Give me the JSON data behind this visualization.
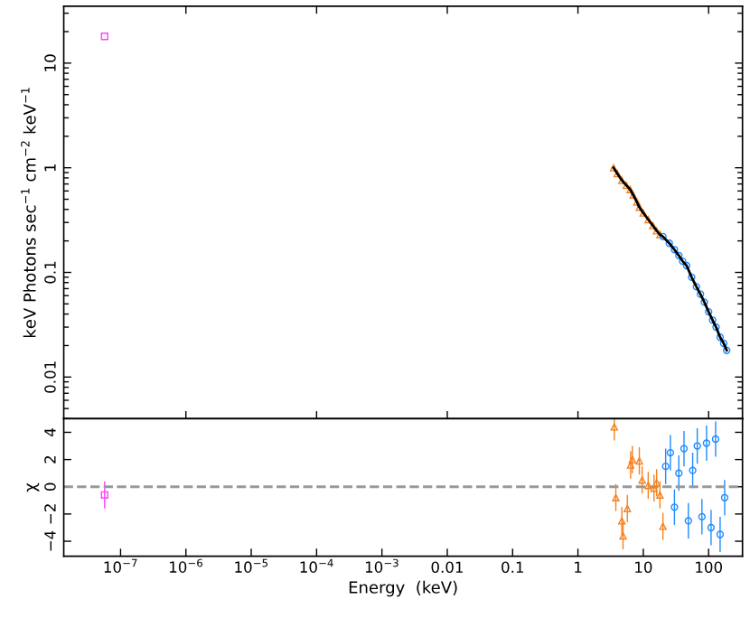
{
  "chart_data": [
    {
      "type": "scatter",
      "ylabel": "keV Photons sec$^{−1}$ cm$^{−2}$ keV$^{−1}$",
      "log": "xy",
      "xlim": [
        1.35e-08,
        330
      ],
      "ylim": [
        0.004,
        35
      ],
      "yticks": [
        0.01,
        0.1,
        1,
        10
      ],
      "tick_labels": "y",
      "legend": false,
      "grid": false,
      "series": [
        {
          "color": "#ff40ff",
          "marker": "square",
          "x": [
            5.7e-08
          ],
          "values": [
            18
          ]
        },
        {
          "color": "#f5821f",
          "marker": "triangle",
          "x": [
            3.5,
            4,
            4.7,
            5.5,
            6.3,
            7,
            8,
            8.7,
            10,
            11.9,
            14,
            16,
            18
          ],
          "values": [
            1.0,
            0.88,
            0.76,
            0.68,
            0.62,
            0.55,
            0.47,
            0.42,
            0.37,
            0.32,
            0.28,
            0.25,
            0.23
          ]
        },
        {
          "color": "#1e8cff",
          "marker": "circle",
          "x": [
            20,
            25,
            30,
            35,
            40,
            46,
            55,
            65,
            75,
            86,
            100,
            115,
            130,
            150,
            170,
            189
          ],
          "values": [
            0.22,
            0.19,
            0.165,
            0.145,
            0.128,
            0.116,
            0.09,
            0.073,
            0.062,
            0.052,
            0.042,
            0.035,
            0.03,
            0.024,
            0.021,
            0.018
          ]
        },
        {
          "type": "line",
          "color": "#000000",
          "marker": "none",
          "x": [
            3.5,
            4,
            4.7,
            5.5,
            6.3,
            7,
            8,
            8.7,
            10,
            11.9,
            14,
            16,
            18,
            20,
            25,
            30,
            35,
            40,
            46,
            55,
            65,
            75,
            86,
            100,
            115,
            130,
            150,
            170,
            189
          ],
          "values": [
            1.0,
            0.88,
            0.76,
            0.68,
            0.62,
            0.55,
            0.47,
            0.42,
            0.37,
            0.32,
            0.28,
            0.25,
            0.23,
            0.22,
            0.19,
            0.165,
            0.145,
            0.128,
            0.116,
            0.09,
            0.073,
            0.062,
            0.052,
            0.042,
            0.035,
            0.03,
            0.024,
            0.021,
            0.018
          ]
        }
      ]
    },
    {
      "type": "scatter",
      "xlabel": "Energy  (keV)",
      "ylabel": "χ",
      "log": "x",
      "xlim": [
        1.35e-08,
        330
      ],
      "ylim": [
        -5.1,
        5
      ],
      "yticks": [
        {
          "value": -4,
          "label": "−4"
        },
        {
          "value": -2,
          "label": "−2"
        },
        0,
        2,
        4
      ],
      "xticks": [
        {
          "value": 1e-07,
          "label": "10$^{−7}$"
        },
        {
          "value": 1e-06,
          "label": "10$^{−6}$"
        },
        {
          "value": 1e-05,
          "label": "10$^{−5}$"
        },
        {
          "value": 0.0001,
          "label": "10$^{−4}$"
        },
        {
          "value": 0.001,
          "label": "10$^{−3}$"
        },
        0.01,
        0.1,
        1,
        10,
        100
      ],
      "legend": false,
      "grid": false,
      "ref_lines": [
        {
          "axis": "y",
          "value": 0,
          "color": "#999999",
          "line_style": "dashed"
        }
      ],
      "series": [
        {
          "color": "#ff40ff",
          "marker": "square",
          "x": [
            5.7e-08
          ],
          "values": [
            -0.6
          ],
          "errors": [
            1.0
          ]
        },
        {
          "color": "#f5821f",
          "marker": "triangle",
          "x": [
            3.6,
            3.8,
            4.7,
            4.9,
            5.7,
            6.4,
            6.8,
            8.7,
            9.6,
            11.9,
            14.6,
            16,
            18,
            20
          ],
          "values": [
            4.4,
            -0.8,
            -2.5,
            -3.6,
            -1.6,
            1.6,
            2.0,
            1.9,
            0.5,
            0.1,
            -0.1,
            0.3,
            -0.6,
            -2.9
          ],
          "errors": [
            1,
            1,
            1,
            1,
            1,
            1,
            1,
            1,
            1,
            1,
            1,
            1,
            1,
            1
          ]
        },
        {
          "color": "#1e8cff",
          "marker": "circle",
          "x": [
            22,
            26,
            30,
            35,
            42,
            49,
            57,
            67,
            79,
            93,
            109,
            128,
            150,
            176
          ],
          "values": [
            1.5,
            2.5,
            -1.5,
            1.0,
            2.8,
            -2.5,
            1.2,
            3.0,
            -2.2,
            3.2,
            -3.0,
            3.5,
            -3.5,
            -0.8
          ],
          "errors": [
            1.3,
            1.3,
            1.3,
            1.3,
            1.3,
            1.3,
            1.3,
            1.3,
            1.3,
            1.3,
            1.3,
            1.3,
            1.3,
            1.3
          ]
        }
      ]
    }
  ]
}
